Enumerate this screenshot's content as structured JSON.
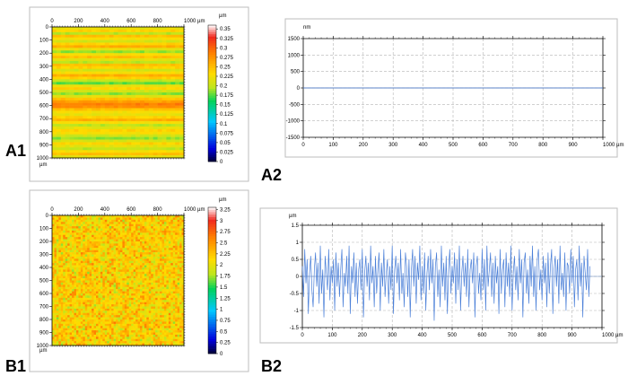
{
  "chart_data": [
    {
      "id": "A1",
      "type": "heatmap",
      "panel_label": "A1",
      "x_unit": "µm",
      "y_unit": "µm",
      "colorbar_unit": "µm",
      "x_ticks": [
        0,
        200,
        400,
        600,
        800,
        1000
      ],
      "y_ticks": [
        0,
        100,
        200,
        300,
        400,
        500,
        600,
        700,
        800,
        900,
        1000
      ],
      "x_tick_labels": [
        "0",
        "200",
        "400",
        "600",
        "800",
        "1000 µm"
      ],
      "y_tick_labels": [
        "0",
        "100",
        "200",
        "300",
        "400",
        "500",
        "600",
        "700",
        "800",
        "900",
        "1000"
      ],
      "xlim": [
        0,
        1000
      ],
      "ylim": [
        0,
        1000
      ],
      "colorbar_ticks": [
        "0.35",
        "0.325",
        "0.3",
        "0.275",
        "0.25",
        "0.225",
        "0.2",
        "0.175",
        "0.15",
        "0.125",
        "0.1",
        "0.075",
        "0.05",
        "0.025",
        "0"
      ],
      "colorbar_range": [
        0,
        0.36
      ],
      "row_profile": [
        0.22,
        0.24,
        0.2,
        0.25,
        0.23,
        0.21,
        0.24,
        0.26,
        0.22,
        0.19,
        0.23,
        0.25,
        0.22,
        0.2,
        0.25,
        0.24,
        0.21,
        0.23,
        0.26,
        0.24,
        0.2,
        0.18,
        0.22,
        0.24,
        0.21,
        0.19,
        0.22,
        0.25,
        0.27,
        0.29,
        0.28,
        0.25,
        0.23,
        0.22,
        0.24,
        0.26,
        0.23,
        0.2,
        0.22,
        0.24,
        0.23,
        0.21,
        0.19,
        0.21,
        0.24,
        0.22,
        0.2,
        0.23,
        0.25,
        0.22
      ]
    },
    {
      "id": "A2",
      "type": "line",
      "panel_label": "A2",
      "y_unit": "nm",
      "x_unit": "µm",
      "x_ticks": [
        0,
        100,
        200,
        300,
        400,
        500,
        600,
        700,
        800,
        900,
        1000
      ],
      "x_tick_labels": [
        "0",
        "100",
        "200",
        "300",
        "400",
        "500",
        "600",
        "700",
        "800",
        "900",
        "1000 µm"
      ],
      "y_ticks": [
        1500,
        1000,
        500,
        0,
        -500,
        -1000,
        -1500
      ],
      "xlim": [
        0,
        1000
      ],
      "ylim": [
        -1500,
        1500
      ],
      "series": [
        {
          "color": "#4472c4",
          "x": [
            0,
            100,
            200,
            300,
            400,
            500,
            600,
            700,
            800,
            900,
            1000
          ],
          "y": [
            0,
            0,
            0,
            0,
            0,
            0,
            0,
            0,
            0,
            0,
            0
          ]
        }
      ]
    },
    {
      "id": "B1",
      "type": "heatmap",
      "panel_label": "B1",
      "x_unit": "µm",
      "y_unit": "µm",
      "colorbar_unit": "µm",
      "x_ticks": [
        0,
        200,
        400,
        600,
        800,
        1000
      ],
      "y_ticks": [
        0,
        100,
        200,
        300,
        400,
        500,
        600,
        700,
        800,
        900,
        1000
      ],
      "x_tick_labels": [
        "0",
        "200",
        "400",
        "600",
        "800",
        "1000 µm"
      ],
      "y_tick_labels": [
        "0",
        "100",
        "200",
        "300",
        "400",
        "500",
        "600",
        "700",
        "800",
        "900",
        "1000"
      ],
      "xlim": [
        0,
        1000
      ],
      "ylim": [
        0,
        1000
      ],
      "colorbar_ticks": [
        "3.25",
        "3",
        "2.75",
        "2.5",
        "2.25",
        "2",
        "1.75",
        "1.5",
        "1.25",
        "1",
        "0.75",
        "0.5",
        "0.25",
        "0"
      ],
      "colorbar_range": [
        0,
        3.3
      ],
      "mean_value": 2.2,
      "spread": 0.5
    },
    {
      "id": "B2",
      "type": "line",
      "panel_label": "B2",
      "y_unit": "µm",
      "x_unit": "µm",
      "x_ticks": [
        0,
        100,
        200,
        300,
        400,
        500,
        600,
        700,
        800,
        900,
        1000
      ],
      "x_tick_labels": [
        "0",
        "100",
        "200",
        "300",
        "400",
        "500",
        "600",
        "700",
        "800",
        "900",
        "1000 µm"
      ],
      "y_ticks": [
        1.5,
        1,
        0.5,
        0,
        -0.5,
        -1,
        -1.5
      ],
      "y_tick_labels": [
        "1.5",
        "1",
        "0.5",
        "0",
        "-0.5",
        "-1",
        "-1.5"
      ],
      "xlim": [
        0,
        1000
      ],
      "ylim": [
        -1.5,
        1.5
      ],
      "series": [
        {
          "color": "#4a7fd8",
          "x_step": 4,
          "y": [
            0.3,
            -0.6,
            0.8,
            -0.2,
            0.5,
            -1.1,
            0.1,
            0.6,
            -0.4,
            -0.9,
            0.2,
            0.7,
            -0.3,
            0.4,
            -0.8,
            0.9,
            -0.5,
            0.2,
            -1.2,
            0.6,
            0.1,
            -0.4,
            0.8,
            -0.7,
            0.3,
            -0.2,
            0.5,
            -1.0,
            0.7,
            -0.3,
            0.4,
            -0.6,
            0.2,
            0.8,
            -0.9,
            0.1,
            -0.3,
            0.6,
            -0.5,
            0.9,
            -1.1,
            0.3,
            -0.2,
            0.7,
            -0.6,
            0.4,
            -0.8,
            0.2,
            0.5,
            -0.4,
            0.8,
            -1.2,
            0.1,
            0.6,
            -0.3,
            0.4,
            -0.7,
            0.9,
            -0.2,
            0.3,
            -0.9,
            0.6,
            -0.5,
            0.2,
            0.7,
            -1.0,
            0.4,
            -0.3,
            0.8,
            -0.6,
            0.1,
            0.5,
            -0.8,
            0.3,
            -0.4,
            0.9,
            -1.1,
            0.2,
            0.6,
            -0.2,
            0.4,
            -0.7,
            0.8,
            -0.5,
            0.1,
            -0.9,
            0.7,
            0.3,
            -0.6,
            0.5,
            -1.2,
            0.2,
            0.8,
            -0.3,
            0.6,
            -0.8,
            0.4,
            -0.1,
            0.9,
            -0.7,
            0.3,
            -0.5,
            0.7,
            -1.0,
            0.1,
            0.6,
            -0.4,
            0.8,
            -0.2,
            0.5,
            -1.3,
            0.3,
            0.7,
            -0.6,
            0.2,
            -0.9,
            0.9,
            -0.3,
            0.4,
            -0.7,
            0.6,
            -1.1,
            0.2,
            0.8,
            -0.5,
            0.3,
            -0.2,
            0.7,
            -0.8,
            0.5,
            -0.4,
            0.9,
            -1.0,
            0.1,
            0.6,
            -0.3,
            0.4,
            -0.6,
            0.8,
            -0.9,
            0.2,
            0.5,
            -0.2,
            0.7,
            -1.2,
            0.3,
            0.6,
            -0.5,
            0.1,
            -0.7,
            0.8,
            -0.4,
            0.5,
            -1.0,
            0.9,
            -0.3,
            0.2,
            0.7,
            -0.6,
            0.4,
            -0.8,
            0.6,
            -0.2,
            0.3,
            -1.1,
            0.8,
            -0.5,
            0.2,
            0.5,
            -0.9,
            0.7,
            -0.3,
            0.4,
            -0.6,
            0.9,
            -1.0,
            0.1,
            0.6,
            -0.4,
            0.3,
            -0.7,
            0.8,
            -0.2,
            0.5,
            -1.2,
            0.4,
            0.7,
            -0.5,
            0.2,
            -0.8,
            0.6,
            -0.3,
            0.9,
            -0.6,
            0.3,
            -1.0,
            0.5,
            0.8,
            -0.4,
            0.2,
            -0.7,
            0.6,
            -0.2,
            0.4,
            -0.9,
            0.7,
            -0.5,
            0.3,
            0.8,
            -1.1,
            0.2,
            0.6,
            -0.3,
            0.5,
            -0.8,
            0.9,
            -0.4,
            0.1,
            -0.6,
            0.7,
            -1.0,
            0.4,
            0.3,
            -0.5,
            0.8,
            -0.2,
            0.6,
            -0.9,
            0.2,
            0.5,
            -0.7,
            0.9,
            -0.3,
            0.4,
            -1.2,
            0.6,
            0.1,
            -0.4,
            0.8,
            -0.6,
            0.3
          ]
        }
      ]
    }
  ]
}
